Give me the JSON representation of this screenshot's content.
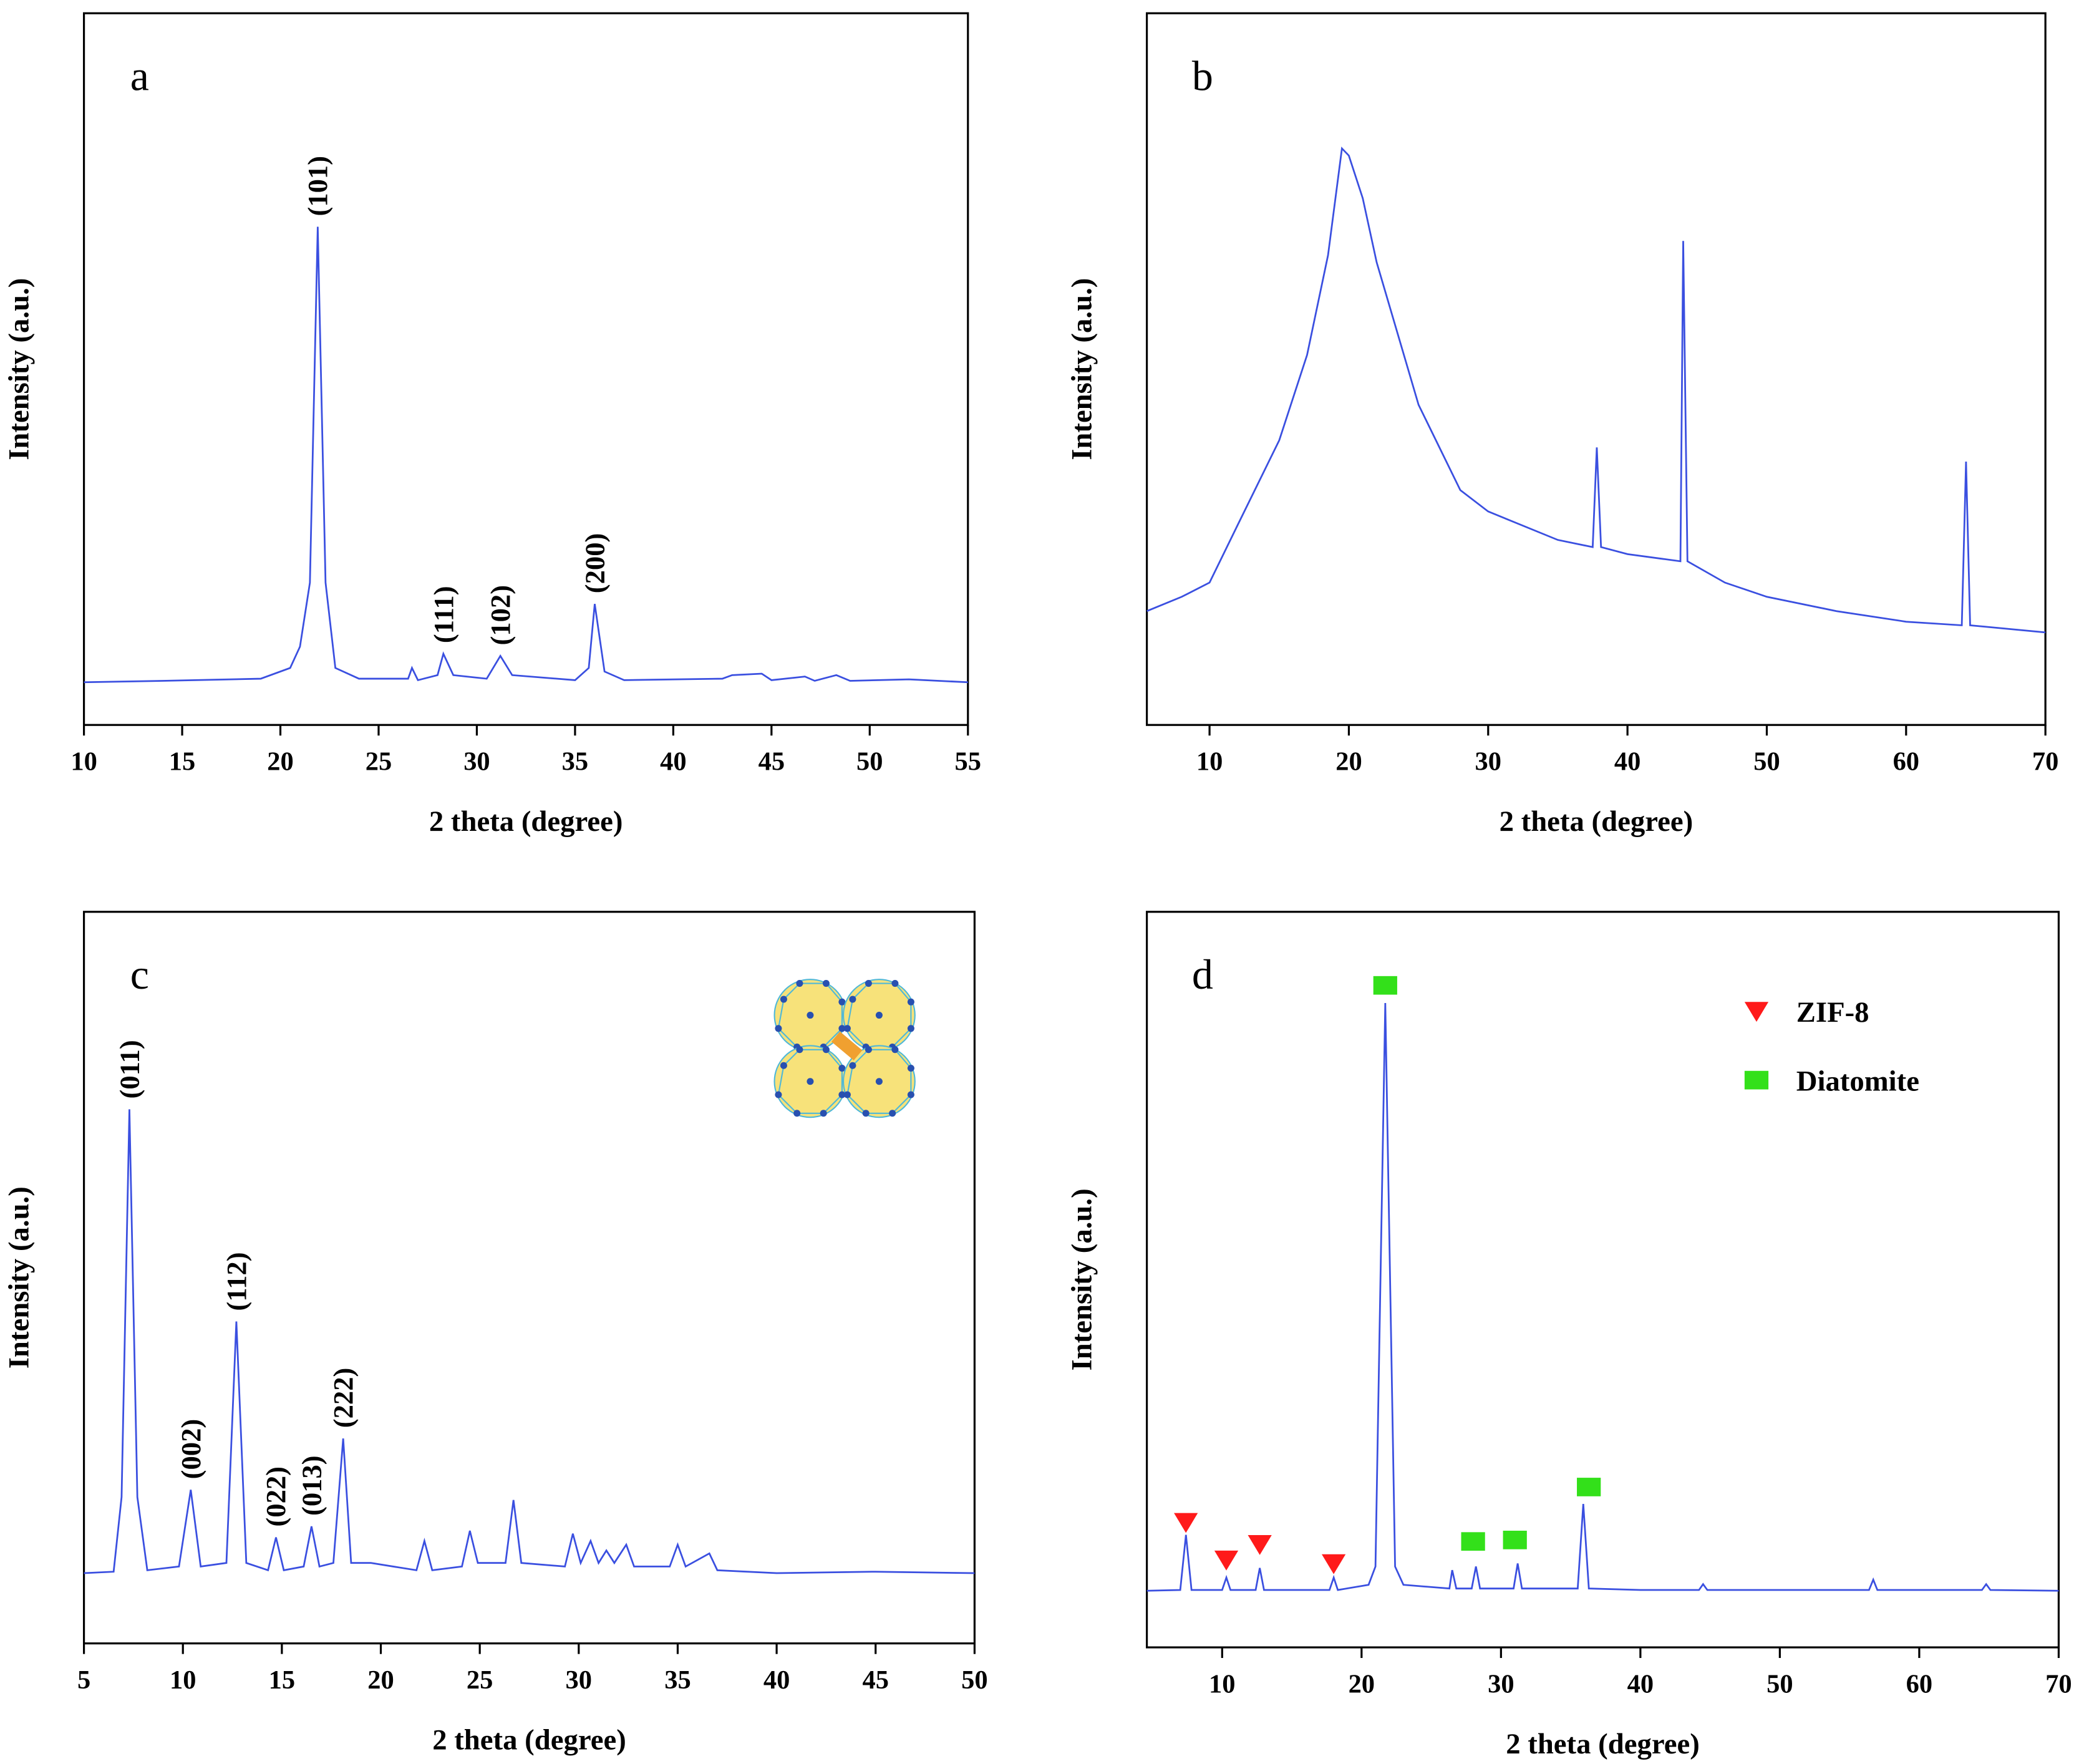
{
  "chart_data": [
    {
      "type": "line",
      "label": "a",
      "xlabel": "2 theta (degree)",
      "ylabel": "Intensity (a.u.)",
      "color": "#3a4fe0",
      "xlim": [
        10,
        55
      ],
      "xticks": [
        10,
        15,
        20,
        25,
        30,
        35,
        40,
        45,
        50,
        55
      ],
      "ylim": [
        0,
        100
      ],
      "x": [
        10,
        14,
        19,
        20.5,
        21,
        21.5,
        21.9,
        22.3,
        22.8,
        24,
        26.5,
        26.7,
        27,
        28,
        28.3,
        28.8,
        30.5,
        31.2,
        31.8,
        35,
        35.7,
        36,
        36.5,
        37.5,
        42.5,
        43,
        44.5,
        45,
        46.7,
        47.2,
        48.3,
        49,
        52,
        55
      ],
      "values": [
        6,
        6.2,
        6.5,
        8,
        11,
        20,
        70,
        20,
        8,
        6.5,
        6.5,
        8,
        6.3,
        7,
        10,
        7,
        6.5,
        9.7,
        7,
        6.3,
        8,
        17,
        7.5,
        6.3,
        6.5,
        7,
        7.2,
        6.3,
        6.8,
        6.2,
        7,
        6.2,
        6.4,
        6
      ],
      "annotations": [
        {
          "text": "(101)",
          "x": 21.9
        },
        {
          "text": "(111)",
          "x": 28.3
        },
        {
          "text": "(102)",
          "x": 31.2
        },
        {
          "text": "(200)",
          "x": 36
        }
      ]
    },
    {
      "type": "line",
      "label": "b",
      "xlabel": "2 theta (degree)",
      "ylabel": "Intensity (a.u.)",
      "color": "#3a4fe0",
      "xlim": [
        5.5,
        70
      ],
      "xticks": [
        10,
        20,
        30,
        40,
        50,
        60,
        70
      ],
      "ylim": [
        0,
        100
      ],
      "x": [
        5.5,
        8,
        10,
        12,
        15,
        17,
        18.5,
        19.5,
        20,
        21,
        22,
        25,
        28,
        30,
        35,
        37.5,
        37.8,
        38.1,
        40,
        43.8,
        44,
        44.3,
        47,
        50,
        55,
        60,
        64,
        64.3,
        64.6,
        70
      ],
      "values": [
        16,
        18,
        20,
        28,
        40,
        52,
        66,
        81,
        80,
        74,
        65,
        45,
        33,
        30,
        26,
        25,
        39,
        25,
        24,
        23,
        68,
        23,
        20,
        18,
        16,
        14.5,
        14,
        37,
        14,
        13
      ]
    },
    {
      "type": "line",
      "label": "c",
      "xlabel": "2 theta (degree)",
      "ylabel": "Intensity (a.u.)",
      "color": "#3a4fe0",
      "xlim": [
        5,
        50
      ],
      "xticks": [
        5,
        10,
        15,
        20,
        25,
        30,
        35,
        40,
        45,
        50
      ],
      "ylim": [
        0,
        100
      ],
      "x": [
        5,
        6.5,
        6.9,
        7.3,
        7.7,
        8.2,
        9.8,
        10.4,
        10.9,
        12.2,
        12.7,
        13.2,
        14.3,
        14.7,
        15.1,
        16.1,
        16.5,
        16.9,
        17.6,
        18.1,
        18.5,
        19.5,
        21.8,
        22.2,
        22.6,
        24.1,
        24.5,
        24.9,
        26.3,
        26.7,
        27.1,
        29.3,
        29.7,
        30.1,
        30.6,
        31,
        31.4,
        31.8,
        32.4,
        32.8,
        34.6,
        35,
        35.4,
        36.6,
        37,
        40,
        45,
        50
      ],
      "values": [
        9.6,
        9.8,
        20,
        73,
        20,
        10,
        10.5,
        21,
        10.5,
        11,
        44,
        11,
        10,
        14.5,
        10,
        10.5,
        16,
        10.5,
        11,
        28,
        11,
        11,
        10,
        14,
        10,
        10.5,
        15.4,
        11,
        11,
        19.6,
        11,
        10.5,
        15,
        11,
        14,
        11,
        12.7,
        11,
        13.5,
        10.5,
        10.5,
        13.5,
        10.5,
        12.3,
        10,
        9.6,
        9.8,
        9.6
      ],
      "annotations": [
        {
          "text": "(011)",
          "x": 7.3
        },
        {
          "text": "(002)",
          "x": 10.4
        },
        {
          "text": "(112)",
          "x": 12.7
        },
        {
          "text": "(022)",
          "x": 14.7
        },
        {
          "text": "(013)",
          "x": 16.5
        },
        {
          "text": "(222)",
          "x": 18.1
        }
      ]
    },
    {
      "type": "line",
      "label": "d",
      "xlabel": "2 theta (degree)",
      "ylabel": "Intensity (a.u.)",
      "color": "#3a4fe0",
      "xlim": [
        4.6,
        70
      ],
      "xticks": [
        10,
        20,
        30,
        40,
        50,
        60,
        70
      ],
      "ylim": [
        0,
        100
      ],
      "legend": "upper right",
      "x": [
        4.6,
        7,
        7.4,
        7.8,
        10,
        10.3,
        10.6,
        12.4,
        12.7,
        13,
        17.7,
        18,
        18.3,
        20.5,
        21,
        21.7,
        22.4,
        23,
        26.3,
        26.5,
        26.8,
        27.9,
        28.2,
        28.5,
        30.9,
        31.2,
        31.5,
        35.5,
        35.9,
        36.3,
        40,
        44.2,
        44.5,
        44.8,
        56.4,
        56.7,
        57,
        64.5,
        64.8,
        65.1,
        70
      ],
      "values": [
        7.7,
        7.8,
        15.3,
        7.8,
        7.8,
        9.5,
        7.8,
        7.8,
        10.8,
        7.8,
        7.8,
        9.5,
        7.8,
        8.5,
        11,
        87.6,
        11,
        8.5,
        8,
        10.5,
        8,
        8,
        11,
        8,
        8,
        11.4,
        8,
        8,
        19.5,
        8,
        7.8,
        7.8,
        8.6,
        7.8,
        7.8,
        9.2,
        7.8,
        7.8,
        8.6,
        7.8,
        7.7
      ],
      "markers": [
        {
          "name": "ZIF-8",
          "color": "#ff1a1a",
          "shape": "triangle",
          "x": [
            7.4,
            10.3,
            12.7,
            18
          ],
          "values": [
            17,
            11.9,
            14,
            11.4
          ]
        },
        {
          "name": "Diatomite",
          "color": "#33e01a",
          "shape": "square",
          "x": [
            21.7,
            28,
            31,
            36.3
          ],
          "values": [
            90,
            14.4,
            14.6,
            21.8
          ]
        }
      ]
    }
  ]
}
